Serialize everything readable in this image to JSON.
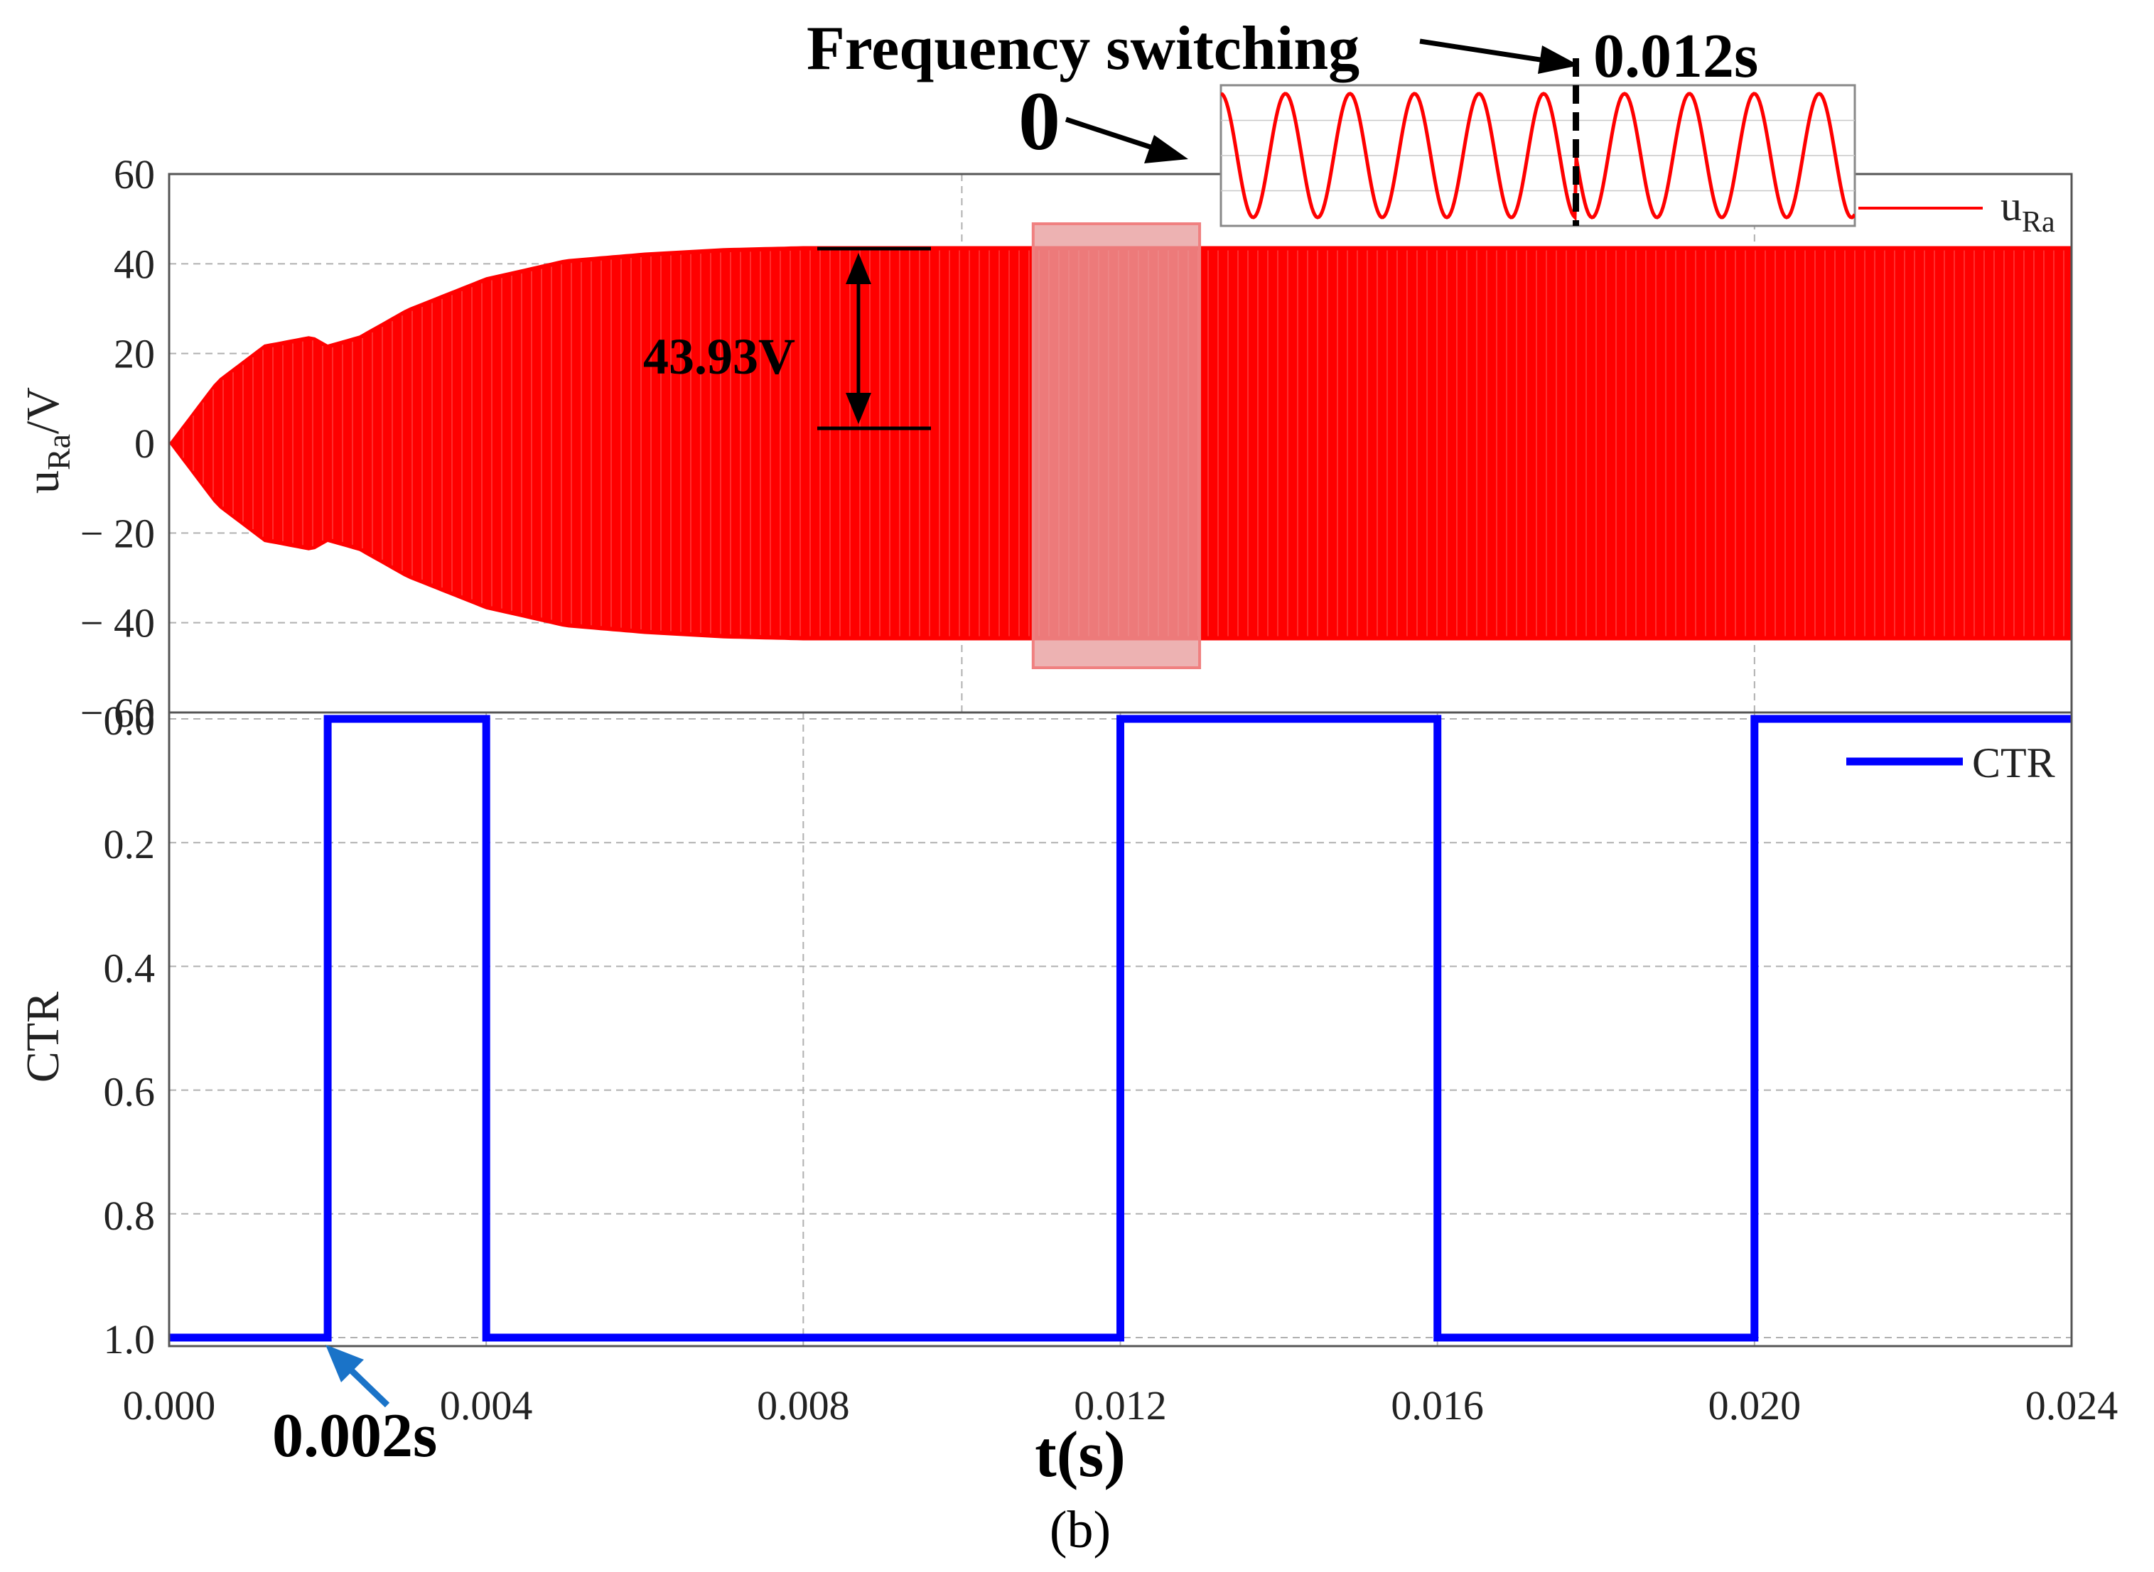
{
  "figure": {
    "caption": "(b)",
    "xlabel": "t(s)"
  },
  "annotations": {
    "freq_switching": "Frequency switching",
    "switch_time": "0.012s",
    "zero": "0",
    "amplitude": "43.93V",
    "start_time": "0.002s"
  },
  "colors": {
    "signal": "#ff0000",
    "ctr": "#0000ff",
    "highlight": "#e89c9c",
    "arrow_blue": "#1a73c8",
    "grid": "#b0b0b0"
  },
  "chart_data": [
    {
      "type": "line",
      "panel": "top",
      "ylabel_main": "u",
      "ylabel_sub": "Ra",
      "ylabel_suffix": "/V",
      "legend_main": "u",
      "legend_sub": "Ra",
      "legend_position": "top-right",
      "xlim": [
        0,
        0.024
      ],
      "ylim": [
        -60,
        60
      ],
      "yticks": [
        60,
        40,
        20,
        0,
        -20,
        -40,
        -60
      ],
      "ytick_labels": [
        "60",
        "40",
        "20",
        "0",
        "− 20",
        "− 40",
        "− 60"
      ],
      "grid": true,
      "series": [
        {
          "name": "uRa envelope",
          "x": [
            0,
            0.0006,
            0.0012,
            0.0018,
            0.002,
            0.0024,
            0.003,
            0.004,
            0.005,
            0.006,
            0.007,
            0.008,
            0.024
          ],
          "upper": [
            0,
            14,
            22,
            24,
            22,
            24,
            30,
            37,
            41,
            42.5,
            43.5,
            43.93,
            43.93
          ],
          "lower": [
            0,
            -14,
            -22,
            -24,
            -22,
            -24,
            -30,
            -37,
            -41,
            -42.5,
            -43.5,
            -43.93,
            -43.93
          ]
        }
      ],
      "highlight_window": [
        0.0109,
        0.013
      ],
      "inset": {
        "cycles_before_switch": 5.5,
        "cycles_after_switch": 4.3,
        "switch_fraction": 0.56
      }
    },
    {
      "type": "line",
      "panel": "bottom",
      "ylabel": "CTR",
      "legend": "CTR",
      "legend_position": "top-right",
      "xlim": [
        0,
        0.024
      ],
      "ylim": [
        0,
        1
      ],
      "yticks": [
        1.0,
        0.8,
        0.6,
        0.4,
        0.2,
        0.0
      ],
      "ytick_labels": [
        "1.0",
        "0.8",
        "0.6",
        "0.4",
        "0.2",
        "0.0"
      ],
      "xticks": [
        0,
        0.004,
        0.008,
        0.012,
        0.016,
        0.02,
        0.024
      ],
      "xtick_labels": [
        "0.000",
        "0.004",
        "0.008",
        "0.012",
        "0.016",
        "0.020",
        "0.024"
      ],
      "grid": true,
      "series": [
        {
          "name": "CTR",
          "x": [
            0,
            0.002,
            0.002,
            0.004,
            0.004,
            0.012,
            0.012,
            0.016,
            0.016,
            0.02,
            0.02,
            0.024
          ],
          "y": [
            1,
            1,
            0,
            0,
            1,
            1,
            0,
            0,
            1,
            1,
            0,
            0
          ]
        }
      ]
    }
  ]
}
